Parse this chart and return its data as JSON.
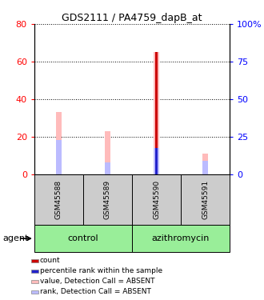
{
  "title": "GDS2111 / PA4759_dapB_at",
  "samples": [
    "GSM45588",
    "GSM45589",
    "GSM45590",
    "GSM45591"
  ],
  "pink_values": [
    33,
    23,
    65,
    11
  ],
  "lightblue_values": [
    18,
    6,
    14,
    7
  ],
  "red_value": 65,
  "red_index": 2,
  "darkblue_value": 14,
  "darkblue_index": 2,
  "left_ylim": [
    0,
    80
  ],
  "right_ylim": [
    0,
    100
  ],
  "left_yticks": [
    0,
    20,
    40,
    60,
    80
  ],
  "right_yticks": [
    0,
    25,
    50,
    75,
    100
  ],
  "right_yticklabels": [
    "0",
    "25",
    "50",
    "75",
    "100%"
  ],
  "color_red": "#cc0000",
  "color_blue": "#2222cc",
  "color_pink": "#ffbbbb",
  "color_lightblue": "#bbbbff",
  "color_green": "#99ee99",
  "color_gray": "#cccccc",
  "group_label": "agent",
  "groups": [
    {
      "label": "control",
      "start": 0,
      "end": 1
    },
    {
      "label": "azithromycin",
      "start": 2,
      "end": 3
    }
  ],
  "legend_items": [
    {
      "color": "#cc0000",
      "label": "count"
    },
    {
      "color": "#2222cc",
      "label": "percentile rank within the sample"
    },
    {
      "color": "#ffbbbb",
      "label": "value, Detection Call = ABSENT"
    },
    {
      "color": "#bbbbff",
      "label": "rank, Detection Call = ABSENT"
    }
  ]
}
